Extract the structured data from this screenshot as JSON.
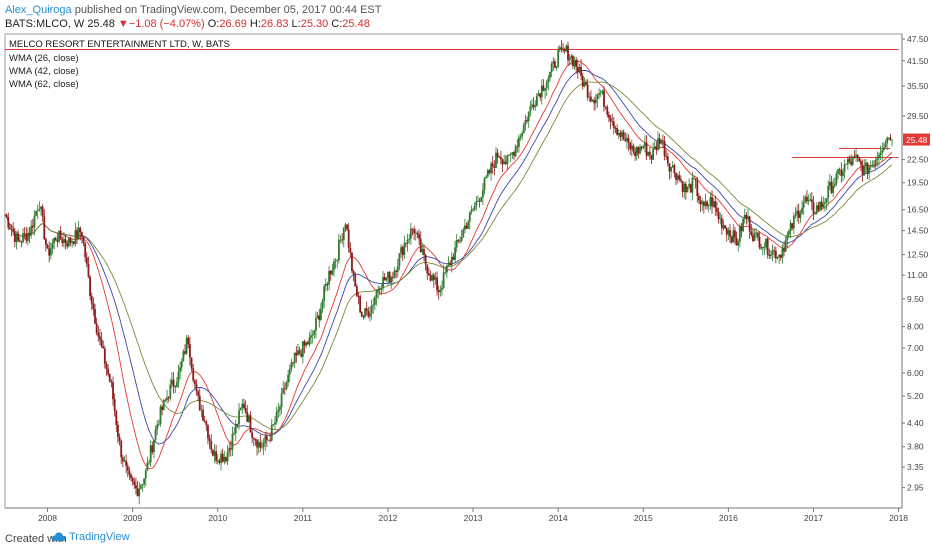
{
  "header": {
    "author": "Alex_Quiroga",
    "published_text": " published on TradingView.com, December 05, 2017 00:44 EST",
    "symbol": "BATS:MLCO, W",
    "last": "25.48",
    "change": "−1.08 (−4.07%)",
    "o_label": "O:",
    "o_value": "26.69",
    "h_label": "H:",
    "h_value": "26.83",
    "l_label": "L:",
    "l_value": "25.30",
    "c_label": "C:",
    "c_value": "25.48"
  },
  "legend": {
    "title": "MELCO RESORT ENTERTAINMENT LTD, W, BATS",
    "ma1": "WMA (26, close)",
    "ma2": "WMA (42, close)",
    "ma3": "WMA (62, close)"
  },
  "footer": {
    "created_with": "Created with",
    "brand": "TradingView"
  },
  "colors": {
    "up_candle": "#2f7a2f",
    "down_candle": "#8b1a1a",
    "wma26": "#e53935",
    "wma42": "#3949ab",
    "wma62": "#7a8a3a",
    "hline": "#e53935",
    "price_tag": "#e53935"
  },
  "chart_data": {
    "type": "candlestick",
    "title": "MELCO RESORT ENTERTAINMENT LTD, W, BATS",
    "scale": "log",
    "ylim": [
      2.6,
      49
    ],
    "y_ticks": [
      "47.50",
      "41.50",
      "35.50",
      "29.50",
      "25.48",
      "22.50",
      "19.50",
      "16.50",
      "14.50",
      "12.50",
      "11.00",
      "9.50",
      "8.00",
      "7.00",
      "6.00",
      "5.20",
      "4.40",
      "3.80",
      "3.35",
      "2.95"
    ],
    "x_ticks": [
      "2008",
      "2009",
      "2010",
      "2011",
      "2012",
      "2013",
      "2014",
      "2015",
      "2016",
      "2017",
      "2018"
    ],
    "last_price": 25.48,
    "horizontal_lines": [
      {
        "value": 44.5,
        "from": 2007.5,
        "to": 2018.0
      },
      {
        "value": 24.1,
        "from": 2017.3,
        "to": 2017.9
      },
      {
        "value": 22.8,
        "from": 2016.75,
        "to": 2018.0
      }
    ],
    "price_path": [
      [
        2007.5,
        16.0
      ],
      [
        2007.65,
        13.5
      ],
      [
        2007.8,
        14.5
      ],
      [
        2007.9,
        17.5
      ],
      [
        2008.0,
        12.5
      ],
      [
        2008.1,
        14.0
      ],
      [
        2008.25,
        13.5
      ],
      [
        2008.4,
        14.5
      ],
      [
        2008.5,
        10.0
      ],
      [
        2008.6,
        7.5
      ],
      [
        2008.75,
        5.5
      ],
      [
        2008.85,
        3.8
      ],
      [
        2008.95,
        3.1
      ],
      [
        2009.05,
        2.9
      ],
      [
        2009.15,
        3.2
      ],
      [
        2009.3,
        4.5
      ],
      [
        2009.45,
        5.5
      ],
      [
        2009.55,
        6.0
      ],
      [
        2009.65,
        7.5
      ],
      [
        2009.75,
        5.2
      ],
      [
        2009.85,
        4.5
      ],
      [
        2009.95,
        3.6
      ],
      [
        2010.1,
        3.6
      ],
      [
        2010.2,
        4.2
      ],
      [
        2010.3,
        5.0
      ],
      [
        2010.4,
        4.2
      ],
      [
        2010.5,
        3.8
      ],
      [
        2010.6,
        4.0
      ],
      [
        2010.7,
        4.6
      ],
      [
        2010.8,
        5.6
      ],
      [
        2010.9,
        6.5
      ],
      [
        2011.0,
        7.0
      ],
      [
        2011.1,
        7.4
      ],
      [
        2011.2,
        8.8
      ],
      [
        2011.3,
        11.0
      ],
      [
        2011.4,
        12.5
      ],
      [
        2011.5,
        15.5
      ],
      [
        2011.6,
        10.5
      ],
      [
        2011.7,
        8.5
      ],
      [
        2011.8,
        9.0
      ],
      [
        2011.9,
        10.5
      ],
      [
        2012.05,
        11.0
      ],
      [
        2012.2,
        13.5
      ],
      [
        2012.3,
        14.8
      ],
      [
        2012.4,
        12.5
      ],
      [
        2012.5,
        11.0
      ],
      [
        2012.6,
        10.0
      ],
      [
        2012.7,
        11.5
      ],
      [
        2012.8,
        13.0
      ],
      [
        2012.9,
        14.8
      ],
      [
        2013.0,
        16.5
      ],
      [
        2013.1,
        18.5
      ],
      [
        2013.2,
        21.0
      ],
      [
        2013.3,
        23.5
      ],
      [
        2013.4,
        22.0
      ],
      [
        2013.5,
        24.5
      ],
      [
        2013.6,
        28.0
      ],
      [
        2013.7,
        32.0
      ],
      [
        2013.8,
        35.0
      ],
      [
        2013.9,
        38.0
      ],
      [
        2014.0,
        43.0
      ],
      [
        2014.1,
        44.0
      ],
      [
        2014.2,
        41.0
      ],
      [
        2014.3,
        36.0
      ],
      [
        2014.4,
        33.0
      ],
      [
        2014.5,
        34.0
      ],
      [
        2014.6,
        30.0
      ],
      [
        2014.7,
        27.0
      ],
      [
        2014.8,
        25.0
      ],
      [
        2014.9,
        23.5
      ],
      [
        2015.0,
        24.5
      ],
      [
        2015.1,
        23.0
      ],
      [
        2015.2,
        26.0
      ],
      [
        2015.3,
        22.0
      ],
      [
        2015.4,
        20.5
      ],
      [
        2015.5,
        18.5
      ],
      [
        2015.6,
        19.5
      ],
      [
        2015.7,
        16.5
      ],
      [
        2015.8,
        17.5
      ],
      [
        2015.9,
        15.5
      ],
      [
        2016.0,
        14.5
      ],
      [
        2016.1,
        13.5
      ],
      [
        2016.2,
        16.0
      ],
      [
        2016.3,
        14.0
      ],
      [
        2016.4,
        13.5
      ],
      [
        2016.5,
        12.8
      ],
      [
        2016.6,
        12.5
      ],
      [
        2016.7,
        14.0
      ],
      [
        2016.8,
        16.0
      ],
      [
        2016.9,
        17.5
      ],
      [
        2017.0,
        16.5
      ],
      [
        2017.1,
        17.0
      ],
      [
        2017.2,
        19.0
      ],
      [
        2017.3,
        20.5
      ],
      [
        2017.4,
        22.0
      ],
      [
        2017.5,
        22.5
      ],
      [
        2017.6,
        21.0
      ],
      [
        2017.7,
        22.0
      ],
      [
        2017.8,
        24.5
      ],
      [
        2017.9,
        26.5
      ],
      [
        2017.93,
        25.48
      ]
    ]
  }
}
